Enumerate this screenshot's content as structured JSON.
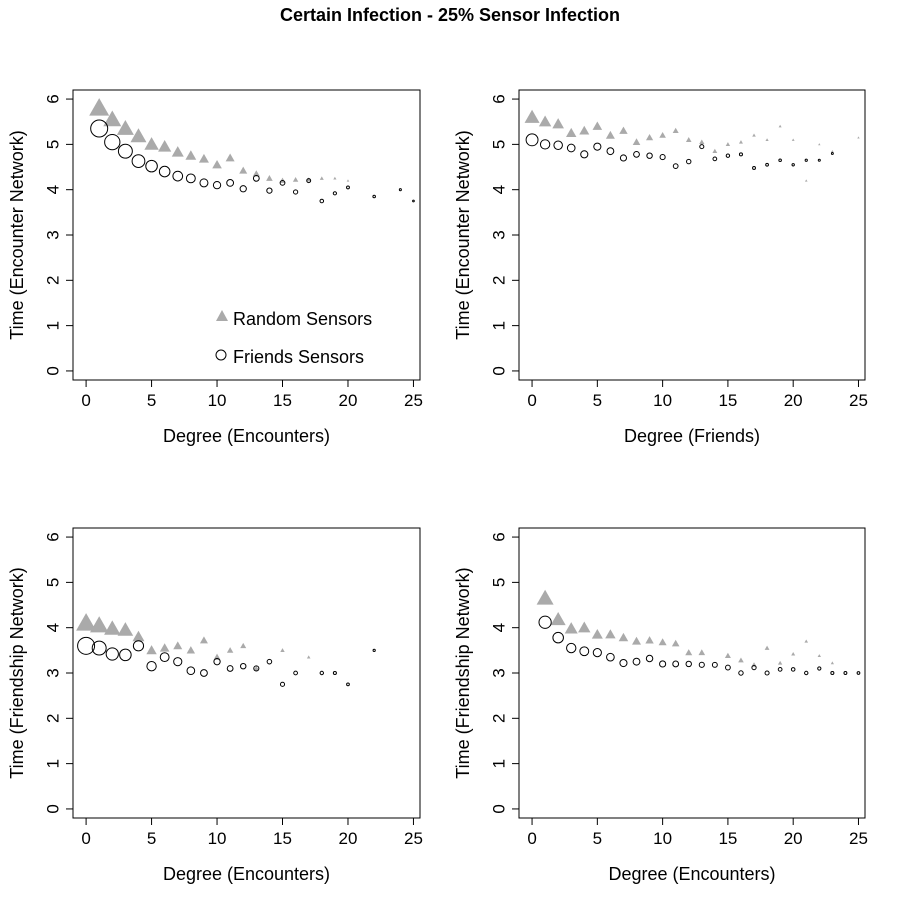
{
  "figure_title": "Certain Infection - 25% Sensor Infection",
  "legend": {
    "random_label": "Random Sensors",
    "friends_label": "Friends Sensors"
  },
  "colors": {
    "random": "#aaaaaa",
    "friends": "#000000",
    "axis": "#000000"
  },
  "chart_data": [
    {
      "type": "scatter",
      "panel": "top-left",
      "xlabel": "Degree (Encounters)",
      "ylabel": "Time (Encounter Network)",
      "xlim": [
        -1,
        25.5
      ],
      "ylim": [
        -0.2,
        6.2
      ],
      "xticks": [
        0,
        5,
        10,
        15,
        20,
        25
      ],
      "yticks": [
        0,
        1,
        2,
        3,
        4,
        5,
        6
      ],
      "legend_position": "bottom-right",
      "series": [
        {
          "name": "Random Sensors",
          "marker": "triangle",
          "x": [
            1,
            2,
            3,
            4,
            5,
            6,
            7,
            8,
            9,
            10,
            11,
            12,
            13,
            14,
            15,
            16,
            17,
            18,
            19,
            20
          ],
          "y": [
            5.8,
            5.55,
            5.35,
            5.18,
            5.0,
            4.95,
            4.83,
            4.75,
            4.68,
            4.55,
            4.7,
            4.42,
            4.35,
            4.25,
            4.2,
            4.22,
            4.22,
            4.25,
            4.25,
            4.2
          ],
          "size": [
            1.0,
            0.9,
            0.85,
            0.8,
            0.72,
            0.66,
            0.6,
            0.54,
            0.5,
            0.48,
            0.45,
            0.4,
            0.36,
            0.33,
            0.3,
            0.27,
            0.24,
            0.2,
            0.16,
            0.13
          ]
        },
        {
          "name": "Friends Sensors",
          "marker": "circle",
          "x": [
            1,
            2,
            3,
            4,
            5,
            6,
            7,
            8,
            9,
            10,
            11,
            12,
            13,
            14,
            15,
            16,
            17,
            18,
            19,
            20,
            22,
            24,
            25
          ],
          "y": [
            5.35,
            5.05,
            4.85,
            4.63,
            4.52,
            4.4,
            4.3,
            4.25,
            4.15,
            4.1,
            4.15,
            4.02,
            4.25,
            3.98,
            4.15,
            3.95,
            4.2,
            3.75,
            3.92,
            4.05,
            3.85,
            4.0,
            3.75
          ],
          "size": [
            1.0,
            0.9,
            0.82,
            0.75,
            0.68,
            0.62,
            0.57,
            0.52,
            0.47,
            0.43,
            0.4,
            0.37,
            0.34,
            0.31,
            0.28,
            0.25,
            0.23,
            0.21,
            0.19,
            0.17,
            0.15,
            0.12,
            0.1
          ]
        }
      ]
    },
    {
      "type": "scatter",
      "panel": "top-right",
      "xlabel": "Degree (Friends)",
      "ylabel": "Time (Encounter Network)",
      "xlim": [
        -1,
        25.5
      ],
      "ylim": [
        -0.2,
        6.2
      ],
      "xticks": [
        0,
        5,
        10,
        15,
        20,
        25
      ],
      "yticks": [
        0,
        1,
        2,
        3,
        4,
        5,
        6
      ],
      "series": [
        {
          "name": "Random Sensors",
          "marker": "triangle",
          "x": [
            0,
            1,
            2,
            3,
            4,
            5,
            6,
            7,
            8,
            9,
            10,
            11,
            12,
            13,
            14,
            15,
            16,
            17,
            18,
            19,
            20,
            21,
            22,
            23,
            25
          ],
          "y": [
            5.6,
            5.5,
            5.45,
            5.25,
            5.3,
            5.4,
            5.2,
            5.3,
            5.05,
            5.15,
            5.2,
            5.3,
            5.1,
            5.05,
            4.85,
            5.0,
            5.05,
            5.2,
            5.1,
            5.4,
            5.1,
            4.2,
            5.0,
            4.85,
            5.15
          ],
          "size": [
            0.75,
            0.62,
            0.58,
            0.52,
            0.5,
            0.48,
            0.45,
            0.42,
            0.38,
            0.36,
            0.33,
            0.3,
            0.28,
            0.26,
            0.24,
            0.22,
            0.2,
            0.18,
            0.16,
            0.15,
            0.14,
            0.13,
            0.12,
            0.11,
            0.1
          ]
        },
        {
          "name": "Friends Sensors",
          "marker": "circle",
          "x": [
            0,
            1,
            2,
            3,
            4,
            5,
            6,
            7,
            8,
            9,
            10,
            11,
            12,
            13,
            14,
            15,
            16,
            17,
            18,
            19,
            20,
            21,
            22,
            23
          ],
          "y": [
            5.1,
            5.0,
            4.98,
            4.92,
            4.78,
            4.95,
            4.85,
            4.7,
            4.78,
            4.75,
            4.72,
            4.52,
            4.62,
            4.95,
            4.68,
            4.75,
            4.78,
            4.48,
            4.55,
            4.65,
            4.55,
            4.65,
            4.65,
            4.8
          ],
          "size": [
            0.7,
            0.55,
            0.5,
            0.45,
            0.42,
            0.42,
            0.4,
            0.36,
            0.34,
            0.32,
            0.3,
            0.28,
            0.26,
            0.24,
            0.22,
            0.2,
            0.18,
            0.17,
            0.16,
            0.15,
            0.14,
            0.13,
            0.12,
            0.11
          ]
        }
      ]
    },
    {
      "type": "scatter",
      "panel": "bottom-left",
      "xlabel": "Degree (Encounters)",
      "ylabel": "Time (Friendship Network)",
      "xlim": [
        -1,
        25.5
      ],
      "ylim": [
        -0.2,
        6.2
      ],
      "xticks": [
        0,
        5,
        10,
        15,
        20,
        25
      ],
      "yticks": [
        0,
        1,
        2,
        3,
        4,
        5,
        6
      ],
      "series": [
        {
          "name": "Random Sensors",
          "marker": "triangle",
          "x": [
            0,
            1,
            2,
            3,
            4,
            5,
            6,
            7,
            8,
            9,
            10,
            11,
            12,
            13,
            15,
            17
          ],
          "y": [
            4.1,
            4.05,
            3.98,
            3.95,
            3.8,
            3.5,
            3.55,
            3.6,
            3.5,
            3.72,
            3.35,
            3.5,
            3.6,
            3.1,
            3.5,
            3.35
          ],
          "size": [
            1.0,
            0.92,
            0.82,
            0.78,
            0.6,
            0.52,
            0.48,
            0.45,
            0.42,
            0.4,
            0.35,
            0.32,
            0.3,
            0.27,
            0.22,
            0.18
          ]
        },
        {
          "name": "Friends Sensors",
          "marker": "circle",
          "x": [
            0,
            1,
            2,
            3,
            4,
            5,
            6,
            7,
            8,
            9,
            10,
            11,
            12,
            13,
            14,
            15,
            16,
            18,
            19,
            20,
            22
          ],
          "y": [
            3.6,
            3.55,
            3.42,
            3.4,
            3.6,
            3.15,
            3.35,
            3.25,
            3.05,
            3.0,
            3.25,
            3.1,
            3.15,
            3.1,
            3.25,
            2.75,
            3.0,
            3.0,
            3.0,
            2.75,
            3.5
          ],
          "size": [
            1.0,
            0.82,
            0.72,
            0.68,
            0.6,
            0.55,
            0.52,
            0.48,
            0.45,
            0.4,
            0.37,
            0.34,
            0.32,
            0.3,
            0.27,
            0.24,
            0.22,
            0.2,
            0.18,
            0.16,
            0.13
          ]
        }
      ]
    },
    {
      "type": "scatter",
      "panel": "bottom-right",
      "xlabel": "Degree (Encounters)",
      "ylabel": "Time (Friendship Network)",
      "xlim": [
        -1,
        25.5
      ],
      "ylim": [
        -0.2,
        6.2
      ],
      "xticks": [
        0,
        5,
        10,
        15,
        20,
        25
      ],
      "yticks": [
        0,
        1,
        2,
        3,
        4,
        5,
        6
      ],
      "series": [
        {
          "name": "Random Sensors",
          "marker": "triangle",
          "x": [
            1,
            2,
            3,
            4,
            5,
            6,
            7,
            8,
            9,
            10,
            11,
            12,
            13,
            15,
            16,
            17,
            18,
            19,
            20,
            21,
            22,
            23
          ],
          "y": [
            4.65,
            4.18,
            3.98,
            4.0,
            3.85,
            3.85,
            3.78,
            3.7,
            3.72,
            3.68,
            3.65,
            3.45,
            3.45,
            3.38,
            3.28,
            3.18,
            3.55,
            3.22,
            3.42,
            3.7,
            3.38,
            3.22
          ],
          "size": [
            0.85,
            0.75,
            0.65,
            0.62,
            0.55,
            0.52,
            0.48,
            0.45,
            0.42,
            0.4,
            0.38,
            0.35,
            0.33,
            0.3,
            0.28,
            0.26,
            0.24,
            0.22,
            0.2,
            0.18,
            0.17,
            0.16
          ]
        },
        {
          "name": "Friends Sensors",
          "marker": "circle",
          "x": [
            1,
            2,
            3,
            4,
            5,
            6,
            7,
            8,
            9,
            10,
            11,
            12,
            13,
            14,
            15,
            16,
            17,
            18,
            19,
            20,
            21,
            22,
            23,
            24,
            25
          ],
          "y": [
            4.12,
            3.78,
            3.55,
            3.48,
            3.45,
            3.35,
            3.22,
            3.25,
            3.32,
            3.2,
            3.2,
            3.2,
            3.18,
            3.18,
            3.12,
            3.0,
            3.12,
            3.0,
            3.08,
            3.08,
            3.0,
            3.1,
            3.0,
            3.0,
            3.0
          ],
          "size": [
            0.72,
            0.62,
            0.55,
            0.52,
            0.48,
            0.45,
            0.42,
            0.4,
            0.38,
            0.36,
            0.34,
            0.32,
            0.3,
            0.29,
            0.28,
            0.26,
            0.25,
            0.24,
            0.22,
            0.21,
            0.2,
            0.19,
            0.18,
            0.17,
            0.16
          ]
        }
      ]
    }
  ]
}
